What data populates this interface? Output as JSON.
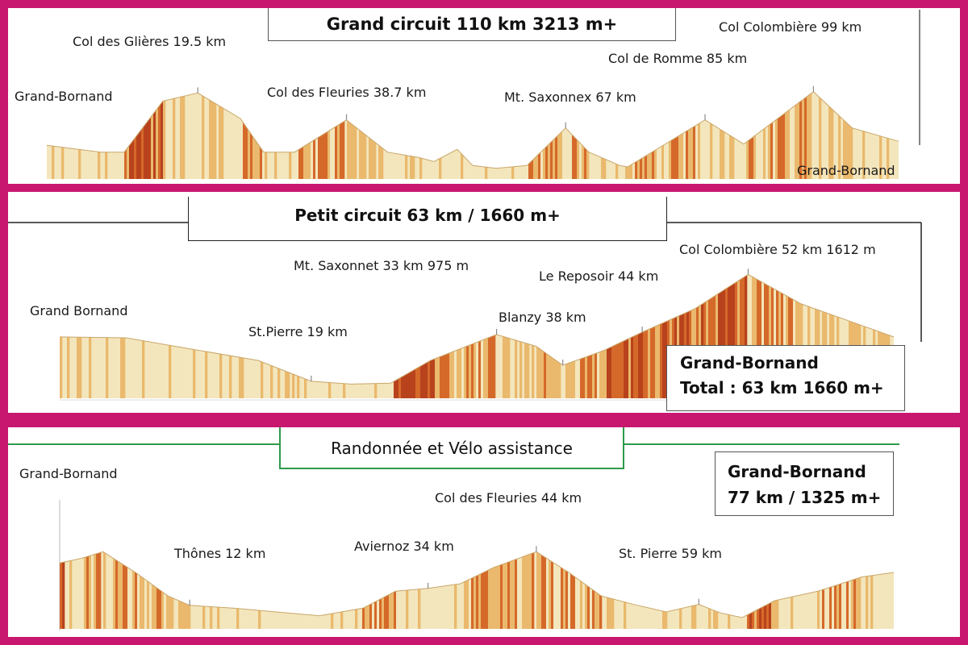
{
  "chart_data": [
    {
      "type": "area",
      "title": "Grand circuit  110 km  3213 m+",
      "start_label": "Grand-Bornand",
      "end_label": "Grand-Bornand",
      "x_unit": "km",
      "y_unit": "m",
      "total_km": 110,
      "ylim": [
        800,
        1700
      ],
      "profile": [
        [
          0,
          1050
        ],
        [
          7,
          1000
        ],
        [
          10,
          1000
        ],
        [
          15,
          1380
        ],
        [
          19.5,
          1440
        ],
        [
          25,
          1250
        ],
        [
          28,
          1000
        ],
        [
          32,
          1000
        ],
        [
          38.7,
          1240
        ],
        [
          44,
          1000
        ],
        [
          48,
          960
        ],
        [
          50,
          930
        ],
        [
          53,
          1020
        ],
        [
          55,
          900
        ],
        [
          58,
          880
        ],
        [
          62,
          900
        ],
        [
          67,
          1180
        ],
        [
          70,
          1000
        ],
        [
          74,
          900
        ],
        [
          75,
          890
        ],
        [
          81,
          1100
        ],
        [
          85,
          1240
        ],
        [
          90,
          1060
        ],
        [
          99,
          1450
        ],
        [
          104,
          1180
        ],
        [
          110,
          1080
        ]
      ],
      "annotations": [
        {
          "text": "Col des Glières 19.5 km",
          "x": 19.5
        },
        {
          "text": "Col des Fleuries 38.7 km",
          "x": 38.7
        },
        {
          "text": "Mt. Saxonnex 67 km",
          "x": 67
        },
        {
          "text": "Col de Romme 85 km",
          "x": 85
        },
        {
          "text": "Col Colombière 99 km",
          "x": 99
        }
      ]
    },
    {
      "type": "area",
      "title": "Petit circuit  63 km / 1660 m+",
      "start_label": "Grand Bornand",
      "x_unit": "km",
      "y_unit": "m",
      "total_km": 63,
      "ylim": [
        300,
        1700
      ],
      "profile": [
        [
          0,
          950
        ],
        [
          5,
          940
        ],
        [
          10,
          820
        ],
        [
          15,
          700
        ],
        [
          19,
          480
        ],
        [
          22,
          450
        ],
        [
          25,
          460
        ],
        [
          28,
          700
        ],
        [
          33,
          975
        ],
        [
          36,
          850
        ],
        [
          38,
          650
        ],
        [
          41,
          800
        ],
        [
          44,
          1000
        ],
        [
          48,
          1250
        ],
        [
          52,
          1612
        ],
        [
          56,
          1300
        ],
        [
          60,
          1100
        ],
        [
          63,
          950
        ]
      ],
      "annotations": [
        {
          "text": "St.Pierre 19 km",
          "x": 19
        },
        {
          "text": "Mt. Saxonnet 33 km 975 m",
          "x": 33
        },
        {
          "text": "Blanzy 38 km",
          "x": 38
        },
        {
          "text": "Le Reposoir 44 km",
          "x": 44
        },
        {
          "text": "Col Colombière 52 km 1612 m",
          "x": 52
        }
      ],
      "summary": {
        "line1": "Grand-Bornand",
        "line2": "Total : 63 km 1660 m+"
      }
    },
    {
      "type": "area",
      "title": "Randonnée  et Vélo assistance",
      "start_label": "Grand-Bornand",
      "x_unit": "km",
      "y_unit": "m",
      "total_km": 77,
      "ylim": [
        300,
        1500
      ],
      "profile": [
        [
          0,
          1000
        ],
        [
          2,
          1050
        ],
        [
          4,
          1120
        ],
        [
          7,
          900
        ],
        [
          10,
          650
        ],
        [
          12,
          550
        ],
        [
          16,
          520
        ],
        [
          20,
          480
        ],
        [
          24,
          440
        ],
        [
          28,
          520
        ],
        [
          31,
          700
        ],
        [
          34,
          730
        ],
        [
          37,
          780
        ],
        [
          40,
          950
        ],
        [
          44,
          1120
        ],
        [
          47,
          900
        ],
        [
          50,
          650
        ],
        [
          53,
          560
        ],
        [
          56,
          480
        ],
        [
          59,
          560
        ],
        [
          61,
          470
        ],
        [
          63,
          420
        ],
        [
          66,
          600
        ],
        [
          70,
          700
        ],
        [
          74,
          850
        ],
        [
          77,
          900
        ]
      ],
      "annotations": [
        {
          "text": "Thônes 12 km",
          "x": 12
        },
        {
          "text": "Aviernoz 34 km",
          "x": 34
        },
        {
          "text": "Col des Fleuries 44 km",
          "x": 44
        },
        {
          "text": "St. Pierre 59 km",
          "x": 59
        }
      ],
      "summary": {
        "line1": "Grand-Bornand",
        "line2": "77 km / 1325 m+"
      }
    }
  ],
  "colors": {
    "frame": "#c8176f",
    "fill_light": "#f3e6bc",
    "fill_mid": "#eab96d",
    "fill_dark": "#d5692a",
    "fill_deep": "#b8421c",
    "green_rule": "#2e9a4a"
  }
}
